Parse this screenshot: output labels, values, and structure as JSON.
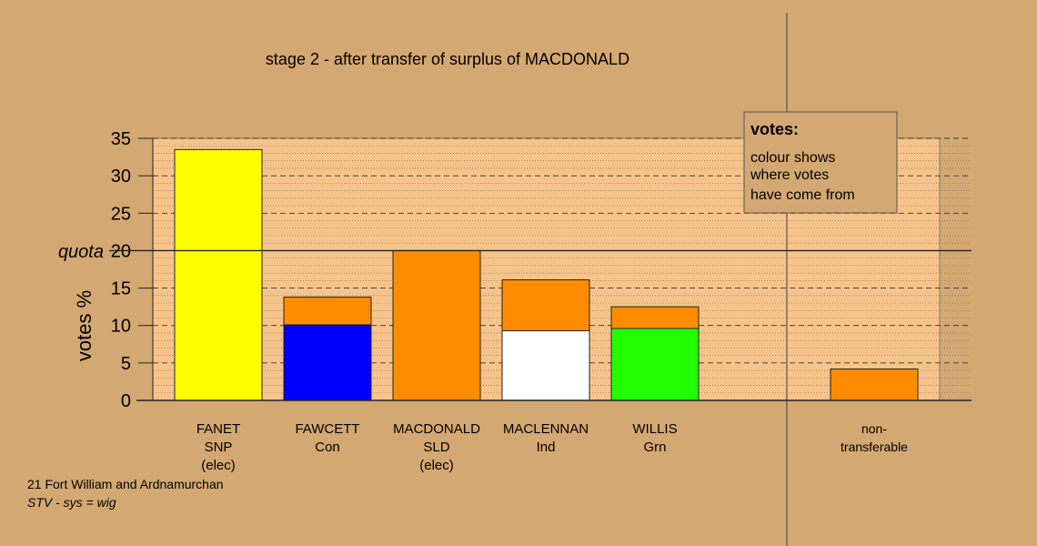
{
  "chart_data": {
    "type": "bar",
    "stacked": true,
    "title": "stage 2 - after transfer of surplus of MACDONALD",
    "ylabel": "votes %",
    "ylim": [
      0,
      35
    ],
    "yticks": [
      0,
      5,
      10,
      15,
      20,
      25,
      30,
      35
    ],
    "quota": {
      "label": "quota",
      "value": 20
    },
    "categories": [
      {
        "line1": "FANET",
        "line2": "SNP",
        "line3": "(elec)"
      },
      {
        "line1": "FAWCETT",
        "line2": "Con",
        "line3": ""
      },
      {
        "line1": "MACDONALD",
        "line2": "SLD",
        "line3": "(elec)"
      },
      {
        "line1": "MACLENNAN",
        "line2": "Ind",
        "line3": ""
      },
      {
        "line1": "WILLIS",
        "line2": "Grn",
        "line3": ""
      },
      {
        "line1": "non-",
        "line2": "transferable",
        "line3": ""
      }
    ],
    "bars": [
      {
        "segments": [
          {
            "value": 33.5,
            "color": "#ffff00"
          }
        ]
      },
      {
        "segments": [
          {
            "value": 10.1,
            "color": "#0000ff"
          },
          {
            "value": 3.7,
            "color": "#ff8c00"
          }
        ]
      },
      {
        "segments": [
          {
            "value": 20.0,
            "color": "#ff8c00"
          }
        ]
      },
      {
        "segments": [
          {
            "value": 9.3,
            "color": "#ffffff"
          },
          {
            "value": 6.8,
            "color": "#ff8c00"
          }
        ]
      },
      {
        "segments": [
          {
            "value": 9.6,
            "color": "#22ff00"
          },
          {
            "value": 2.9,
            "color": "#ff8c00"
          }
        ]
      },
      {
        "segments": [
          {
            "value": 4.2,
            "color": "#ff8c00"
          }
        ]
      }
    ],
    "grid": true,
    "legend": {
      "title": "votes:",
      "lines": [
        "colour shows",
        "where votes",
        "have come from"
      ],
      "placement": "top-right"
    }
  },
  "footer": {
    "constituency": "21 Fort William and Ardnamurchan",
    "system": "STV - sys = wig"
  },
  "colors": {
    "background": "#d4a872",
    "plot_fill": "#f6c48a"
  }
}
